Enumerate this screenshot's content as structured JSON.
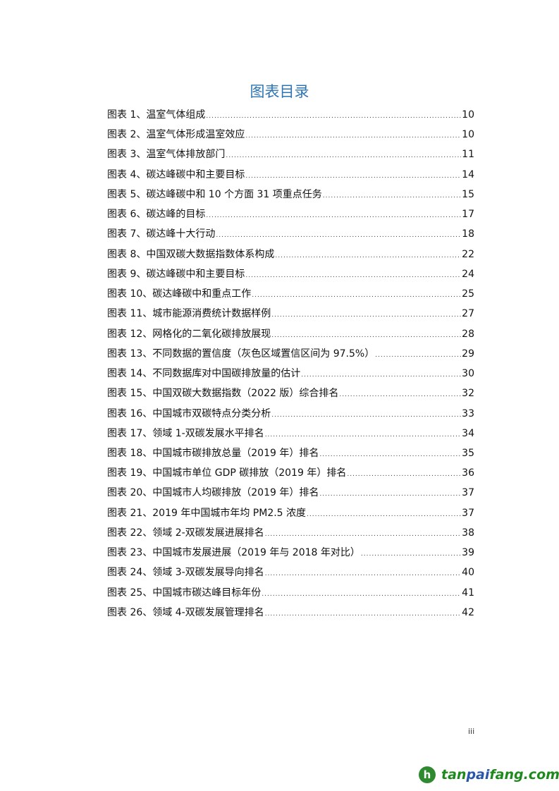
{
  "title": "图表目录",
  "entries": [
    {
      "label": "图表 1、温室气体组成",
      "page": "10"
    },
    {
      "label": "图表 2、温室气体形成温室效应",
      "page": "10"
    },
    {
      "label": "图表 3、温室气体排放部门",
      "page": "11"
    },
    {
      "label": "图表 4、碳达峰碳中和主要目标",
      "page": "14"
    },
    {
      "label": "图表 5、碳达峰碳中和 10 个方面 31 项重点任务",
      "page": "15"
    },
    {
      "label": "图表 6、碳达峰的目标",
      "page": "17"
    },
    {
      "label": "图表 7、碳达峰十大行动",
      "page": "18"
    },
    {
      "label": "图表 8、中国双碳大数据指数体系构成",
      "page": "22"
    },
    {
      "label": "图表 9、碳达峰碳中和主要目标",
      "page": "24"
    },
    {
      "label": "图表 10、碳达峰碳中和重点工作",
      "page": "25"
    },
    {
      "label": "图表 11、城市能源消费统计数据样例",
      "page": "27"
    },
    {
      "label": "图表 12、网格化的二氧化碳排放展现",
      "page": "28"
    },
    {
      "label": "图表 13、不同数据的置信度（灰色区域置信区间为 97.5%）",
      "page": "29"
    },
    {
      "label": "图表 14、不同数据库对中国碳排放量的估计",
      "page": "30"
    },
    {
      "label": "图表 15、中国双碳大数据指数（2022 版）综合排名",
      "page": "32"
    },
    {
      "label": "图表 16、中国城市双碳特点分类分析",
      "page": "33"
    },
    {
      "label": "图表 17、领域 1-双碳发展水平排名",
      "page": "34"
    },
    {
      "label": "图表 18、中国城市碳排放总量（2019 年）排名",
      "page": "35"
    },
    {
      "label": "图表 19、中国城市单位 GDP 碳排放（2019 年）排名",
      "page": "36"
    },
    {
      "label": "图表 20、中国城市人均碳排放（2019 年）排名",
      "page": "37"
    },
    {
      "label": "图表 21、2019 年中国城市年均 PM2.5 浓度",
      "page": "37"
    },
    {
      "label": "图表 22、领域 2-双碳发展进展排名",
      "page": "38"
    },
    {
      "label": "图表 23、中国城市发展进展（2019 年与 2018 年对比）",
      "page": "39"
    },
    {
      "label": "图表 24、领域 3-双碳发展导向排名",
      "page": "40"
    },
    {
      "label": "图表 25、中国城市碳达峰目标年份",
      "page": "41"
    },
    {
      "label": "图表 26、领域 4-双碳发展管理排名",
      "page": "42"
    }
  ],
  "page_number": "iii",
  "logo": {
    "part1": "tan",
    "part2": "pai",
    "part3": "fang.com",
    "mark": "h",
    "colors": {
      "green": "#1e8a1e",
      "blue": "#2856a8"
    }
  },
  "accent_color": "#2e74b5"
}
